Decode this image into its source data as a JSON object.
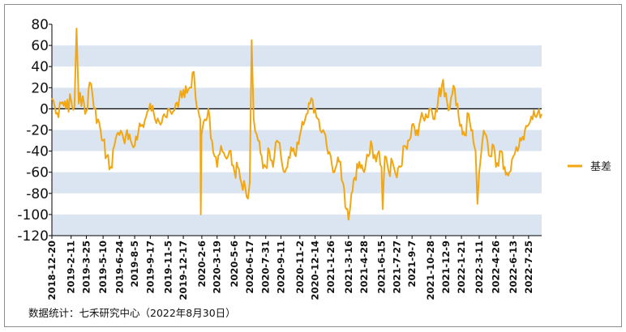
{
  "chart_data": {
    "type": "line",
    "title": "",
    "xlabel": "",
    "ylabel": "",
    "ylim": [
      -120,
      80
    ],
    "yticks": [
      80,
      60,
      40,
      20,
      0,
      -20,
      -40,
      -60,
      -80,
      -100,
      -120
    ],
    "grid": "alternating horizontal bands",
    "legend_position": "right",
    "colors": {
      "series": "#f2a712",
      "band": "#dbe5f1",
      "axis": "#000000"
    },
    "x_tick_labels": [
      "2018-12-20",
      "2019-2-11",
      "2019-3-25",
      "2019-5-10",
      "2019-6-24",
      "2019-8-5",
      "2019-9-17",
      "2019-11-5",
      "2019-12-17",
      "2020-2-6",
      "2020-3-19",
      "2020-5-6",
      "2020-6-17",
      "2020-7-31",
      "2020-9-11",
      "2020-11-2",
      "2020-12-14",
      "2021-1-26",
      "2021-3-16",
      "2021-4-28",
      "2021-6-15",
      "2021-7-27",
      "2021-9-7",
      "2021-10-28",
      "2021-12-9",
      "2022-1-21",
      "2022-3-11",
      "2022-4-26",
      "2022-6-13",
      "2022-7-25"
    ],
    "series": [
      {
        "name": "基差",
        "keypoints": [
          [
            "2018-12-20",
            10
          ],
          [
            "2018-12-28",
            2
          ],
          [
            "2019-1-7",
            -8
          ],
          [
            "2019-1-15",
            5
          ],
          [
            "2019-1-28",
            0
          ],
          [
            "2019-2-11",
            8
          ],
          [
            "2019-2-20",
            2
          ],
          [
            "2019-2-26",
            76
          ],
          [
            "2019-3-4",
            5
          ],
          [
            "2019-3-15",
            12
          ],
          [
            "2019-3-25",
            -2
          ],
          [
            "2019-4-3",
            25
          ],
          [
            "2019-4-15",
            0
          ],
          [
            "2019-4-26",
            -10
          ],
          [
            "2019-5-10",
            -30
          ],
          [
            "2019-5-20",
            -45
          ],
          [
            "2019-5-31",
            -55
          ],
          [
            "2019-6-10",
            -35
          ],
          [
            "2019-6-24",
            -25
          ],
          [
            "2019-7-5",
            -28
          ],
          [
            "2019-7-15",
            -20
          ],
          [
            "2019-7-25",
            -30
          ],
          [
            "2019-8-5",
            -35
          ],
          [
            "2019-8-15",
            -22
          ],
          [
            "2019-8-26",
            -15
          ],
          [
            "2019-9-5",
            -8
          ],
          [
            "2019-9-17",
            5
          ],
          [
            "2019-9-30",
            -10
          ],
          [
            "2019-10-15",
            -15
          ],
          [
            "2019-10-25",
            -5
          ],
          [
            "2019-11-5",
            0
          ],
          [
            "2019-11-15",
            -5
          ],
          [
            "2019-11-26",
            5
          ],
          [
            "2019-12-6",
            10
          ],
          [
            "2019-12-17",
            18
          ],
          [
            "2019-12-27",
            15
          ],
          [
            "2020-1-8",
            20
          ],
          [
            "2020-1-15",
            35
          ],
          [
            "2020-1-20",
            10
          ],
          [
            "2020-2-2",
            -10
          ],
          [
            "2020-2-3",
            -100
          ],
          [
            "2020-2-5",
            -25
          ],
          [
            "2020-2-14",
            -10
          ],
          [
            "2020-2-24",
            0
          ],
          [
            "2020-3-5",
            -30
          ],
          [
            "2020-3-12",
            -45
          ],
          [
            "2020-3-19",
            -55
          ],
          [
            "2020-3-30",
            -35
          ],
          [
            "2020-4-10",
            -45
          ],
          [
            "2020-4-22",
            -40
          ],
          [
            "2020-5-6",
            -60
          ],
          [
            "2020-5-15",
            -55
          ],
          [
            "2020-5-25",
            -70
          ],
          [
            "2020-6-5",
            -75
          ],
          [
            "2020-6-12",
            -85
          ],
          [
            "2020-6-17",
            -70
          ],
          [
            "2020-6-22",
            65
          ],
          [
            "2020-6-28",
            -10
          ],
          [
            "2020-7-10",
            -30
          ],
          [
            "2020-7-20",
            -45
          ],
          [
            "2020-7-31",
            -55
          ],
          [
            "2020-8-10",
            -40
          ],
          [
            "2020-8-20",
            -55
          ],
          [
            "2020-8-31",
            -30
          ],
          [
            "2020-9-11",
            -45
          ],
          [
            "2020-9-22",
            -60
          ],
          [
            "2020-10-12",
            -40
          ],
          [
            "2020-10-22",
            -45
          ],
          [
            "2020-11-2",
            -25
          ],
          [
            "2020-11-12",
            -15
          ],
          [
            "2020-11-20",
            -5
          ],
          [
            "2020-11-30",
            5
          ],
          [
            "2020-12-14",
            0
          ],
          [
            "2020-12-24",
            -10
          ],
          [
            "2021-1-5",
            -20
          ],
          [
            "2021-1-15",
            -35
          ],
          [
            "2021-1-26",
            -45
          ],
          [
            "2021-2-5",
            -60
          ],
          [
            "2021-2-18",
            -50
          ],
          [
            "2021-3-1",
            -70
          ],
          [
            "2021-3-10",
            -95
          ],
          [
            "2021-3-16",
            -105
          ],
          [
            "2021-3-24",
            -80
          ],
          [
            "2021-4-2",
            -65
          ],
          [
            "2021-4-15",
            -50
          ],
          [
            "2021-4-28",
            -60
          ],
          [
            "2021-5-10",
            -45
          ],
          [
            "2021-5-20",
            -35
          ],
          [
            "2021-5-31",
            -50
          ],
          [
            "2021-6-8",
            -40
          ],
          [
            "2021-6-15",
            -55
          ],
          [
            "2021-6-18",
            -95
          ],
          [
            "2021-6-24",
            -45
          ],
          [
            "2021-7-5",
            -60
          ],
          [
            "2021-7-15",
            -50
          ],
          [
            "2021-7-27",
            -65
          ],
          [
            "2021-8-6",
            -55
          ],
          [
            "2021-8-18",
            -35
          ],
          [
            "2021-8-27",
            -30
          ],
          [
            "2021-9-7",
            -15
          ],
          [
            "2021-9-17",
            -25
          ],
          [
            "2021-9-30",
            -10
          ],
          [
            "2021-10-15",
            -5
          ],
          [
            "2021-10-28",
            0
          ],
          [
            "2021-11-8",
            -10
          ],
          [
            "2021-11-18",
            10
          ],
          [
            "2021-11-28",
            22
          ],
          [
            "2021-12-9",
            15
          ],
          [
            "2021-12-20",
            0
          ],
          [
            "2021-12-30",
            22
          ],
          [
            "2022-1-10",
            5
          ],
          [
            "2022-1-21",
            -15
          ],
          [
            "2022-1-30",
            -25
          ],
          [
            "2022-2-10",
            -5
          ],
          [
            "2022-2-20",
            -20
          ],
          [
            "2022-3-1",
            -40
          ],
          [
            "2022-3-6",
            -90
          ],
          [
            "2022-3-11",
            -60
          ],
          [
            "2022-3-20",
            -30
          ],
          [
            "2022-3-30",
            -25
          ],
          [
            "2022-4-10",
            -45
          ],
          [
            "2022-4-20",
            -35
          ],
          [
            "2022-4-26",
            -55
          ],
          [
            "2022-5-10",
            -40
          ],
          [
            "2022-5-20",
            -55
          ],
          [
            "2022-6-2",
            -60
          ],
          [
            "2022-6-13",
            -45
          ],
          [
            "2022-6-25",
            -40
          ],
          [
            "2022-7-5",
            -30
          ],
          [
            "2022-7-15",
            -20
          ],
          [
            "2022-7-25",
            -15
          ],
          [
            "2022-8-5",
            -10
          ],
          [
            "2022-8-15",
            -8
          ],
          [
            "2022-8-30",
            -5
          ]
        ]
      }
    ],
    "legend": [
      {
        "label": "基差",
        "color": "#f2a712"
      }
    ]
  },
  "footer": {
    "source": "数据统计：七禾研究中心（2022年8月30日）"
  }
}
